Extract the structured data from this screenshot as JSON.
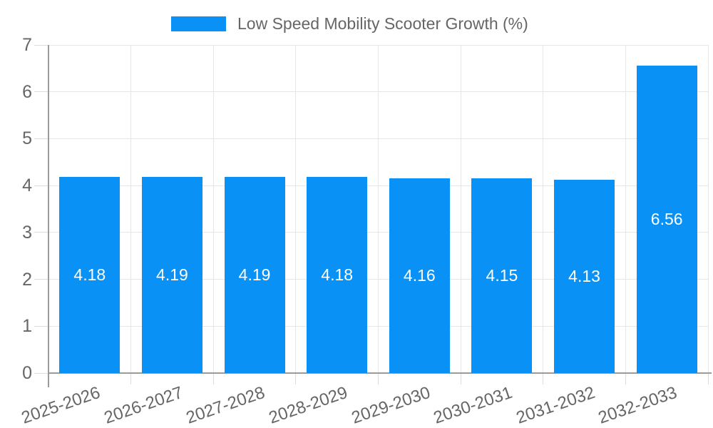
{
  "legend": {
    "label": "Low Speed Mobility Scooter Growth (%)"
  },
  "chart_data": {
    "type": "bar",
    "title": "",
    "xlabel": "",
    "ylabel": "",
    "categories": [
      "2025-2026",
      "2026-2027",
      "2027-2028",
      "2028-2029",
      "2029-2030",
      "2030-2031",
      "2031-2032",
      "2032-2033"
    ],
    "values": [
      4.18,
      4.19,
      4.19,
      4.18,
      4.16,
      4.15,
      4.13,
      6.56
    ],
    "series_name": "Low Speed Mobility Scooter Growth (%)",
    "ylim": [
      0,
      7
    ],
    "y_ticks": [
      0,
      1,
      2,
      3,
      4,
      5,
      6,
      7
    ],
    "grid": true,
    "legend_position": "top-center",
    "value_label_position": "inside-center",
    "x_tick_rotation_deg": -19
  },
  "style": {
    "bar_color": "#0a91f5",
    "value_label_color": "#ffffff",
    "grid_color": "#e6e6e6",
    "tick_color": "#dcdcdc",
    "axis_color": "#9b9b9b",
    "text_color": "#666666",
    "background": "#ffffff"
  }
}
